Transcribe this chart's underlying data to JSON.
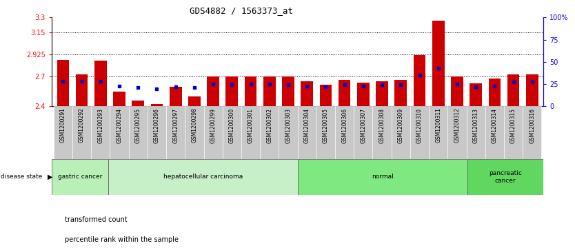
{
  "title": "GDS4882 / 1563373_at",
  "samples": [
    "GSM1200291",
    "GSM1200292",
    "GSM1200293",
    "GSM1200294",
    "GSM1200295",
    "GSM1200296",
    "GSM1200297",
    "GSM1200298",
    "GSM1200299",
    "GSM1200300",
    "GSM1200301",
    "GSM1200302",
    "GSM1200303",
    "GSM1200304",
    "GSM1200305",
    "GSM1200306",
    "GSM1200307",
    "GSM1200308",
    "GSM1200309",
    "GSM1200310",
    "GSM1200311",
    "GSM1200312",
    "GSM1200313",
    "GSM1200314",
    "GSM1200315",
    "GSM1200316"
  ],
  "transformed_count": [
    2.87,
    2.72,
    2.86,
    2.55,
    2.46,
    2.42,
    2.6,
    2.5,
    2.7,
    2.7,
    2.7,
    2.7,
    2.7,
    2.65,
    2.62,
    2.67,
    2.64,
    2.65,
    2.67,
    2.92,
    3.27,
    2.7,
    2.63,
    2.68,
    2.72,
    2.72
  ],
  "percentile_rank": [
    28,
    28,
    28,
    23,
    21,
    20,
    22,
    21,
    25,
    24,
    25,
    25,
    24,
    23,
    22,
    24,
    23,
    24,
    24,
    35,
    43,
    25,
    22,
    23,
    27,
    27
  ],
  "ylim": [
    2.4,
    3.3
  ],
  "y2lim": [
    0,
    100
  ],
  "yticks": [
    2.4,
    2.7,
    2.925,
    3.15,
    3.3
  ],
  "ytick_labels": [
    "2.4",
    "2.7",
    "2.925",
    "3.15",
    "3.3"
  ],
  "y2ticks": [
    0,
    25,
    50,
    75,
    100
  ],
  "y2tick_labels": [
    "0",
    "25",
    "50",
    "75",
    "100%"
  ],
  "hlines": [
    2.7,
    2.925,
    3.15
  ],
  "bar_color": "#cc0000",
  "dot_color": "#0000cc",
  "bg_color": "#ffffff",
  "xtick_bg": "#c8c8c8",
  "group_configs": [
    {
      "label": "gastric cancer",
      "start": 0,
      "end": 3,
      "color": "#b8f0b8"
    },
    {
      "label": "hepatocellular carcinoma",
      "start": 3,
      "end": 13,
      "color": "#c8f0c8"
    },
    {
      "label": "normal",
      "start": 13,
      "end": 22,
      "color": "#80e880"
    },
    {
      "label": "pancreatic\ncancer",
      "start": 22,
      "end": 26,
      "color": "#60d860"
    }
  ]
}
